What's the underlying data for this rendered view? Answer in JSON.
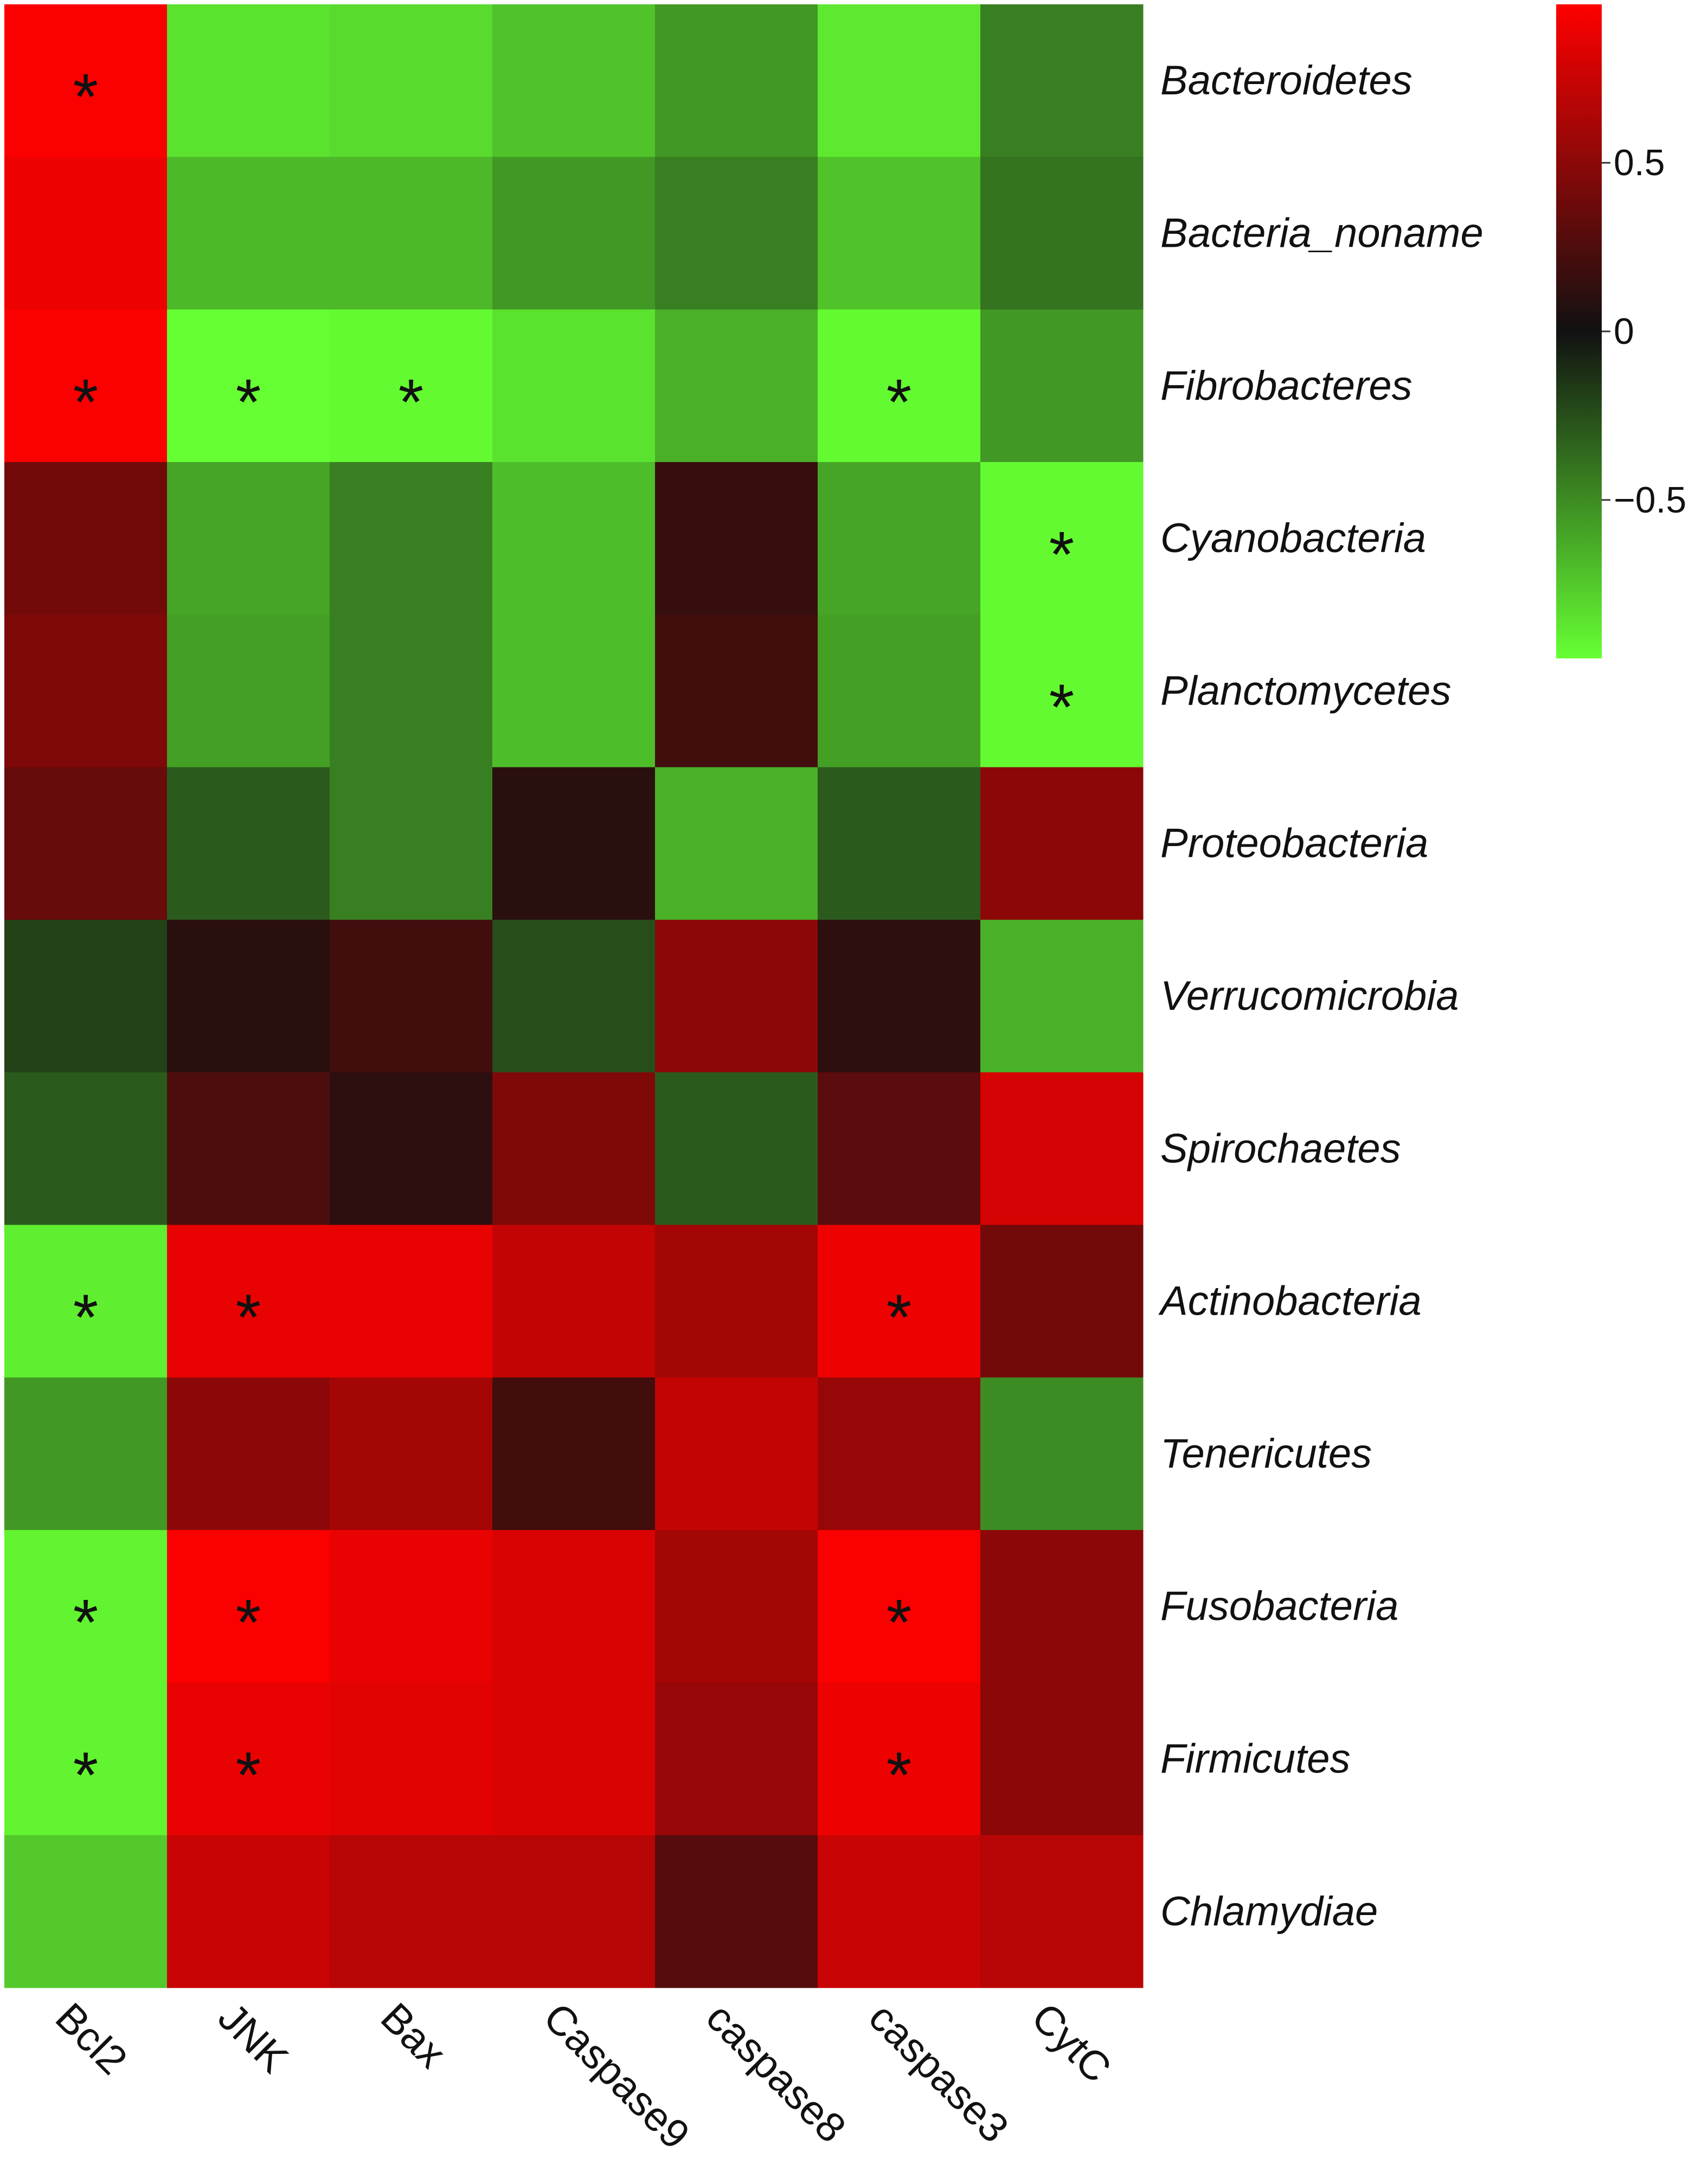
{
  "chart_data": {
    "type": "heatmap",
    "x": [
      "Bcl2",
      "JNK",
      "Bax",
      "Caspase9",
      "caspase8",
      "caspase3",
      "CytC"
    ],
    "y": [
      "Bacteroidetes",
      "Bacteria_noname",
      "Fibrobacteres",
      "Cyanobacteria",
      "Planctomycetes",
      "Proteobacteria",
      "Verrucomicrobia",
      "Spirochaetes",
      "Actinobacteria",
      "Tenericutes",
      "Fusobacteria",
      "Firmicutes",
      "Chlamydiae"
    ],
    "values": [
      [
        0.95,
        -0.85,
        -0.82,
        -0.72,
        -0.55,
        -0.88,
        -0.45
      ],
      [
        0.9,
        -0.68,
        -0.68,
        -0.55,
        -0.45,
        -0.72,
        -0.4
      ],
      [
        0.95,
        -0.97,
        -0.95,
        -0.85,
        -0.65,
        -0.95,
        -0.55
      ],
      [
        0.4,
        -0.6,
        -0.45,
        -0.7,
        0.15,
        -0.6,
        -0.95
      ],
      [
        0.45,
        -0.58,
        -0.45,
        -0.7,
        0.2,
        -0.58,
        -0.95
      ],
      [
        0.35,
        -0.3,
        -0.45,
        0.1,
        -0.65,
        -0.3,
        0.5
      ],
      [
        -0.2,
        0.1,
        0.2,
        -0.25,
        0.5,
        0.12,
        -0.65
      ],
      [
        -0.3,
        0.25,
        0.12,
        0.45,
        -0.3,
        0.3,
        0.8
      ],
      [
        -0.9,
        0.88,
        0.88,
        0.72,
        0.6,
        0.9,
        0.4
      ],
      [
        -0.55,
        0.5,
        0.6,
        0.2,
        0.72,
        0.55,
        -0.5
      ],
      [
        -0.92,
        0.95,
        0.88,
        0.82,
        0.6,
        0.95,
        0.5
      ],
      [
        -0.92,
        0.88,
        0.85,
        0.82,
        0.55,
        0.9,
        0.5
      ],
      [
        -0.75,
        0.75,
        0.68,
        0.68,
        0.28,
        0.75,
        0.68
      ]
    ],
    "annotations": [
      [
        "*",
        null,
        null,
        null,
        null,
        null,
        null
      ],
      [
        null,
        null,
        null,
        null,
        null,
        null,
        null
      ],
      [
        "*",
        "*",
        "*",
        null,
        null,
        "*",
        null
      ],
      [
        null,
        null,
        null,
        null,
        null,
        null,
        "*"
      ],
      [
        null,
        null,
        null,
        null,
        null,
        null,
        "*"
      ],
      [
        null,
        null,
        null,
        null,
        null,
        null,
        null
      ],
      [
        null,
        null,
        null,
        null,
        null,
        null,
        null
      ],
      [
        null,
        null,
        null,
        null,
        null,
        null,
        null
      ],
      [
        "*",
        "*",
        null,
        null,
        null,
        "*",
        null
      ],
      [
        null,
        null,
        null,
        null,
        null,
        null,
        null
      ],
      [
        "*",
        "*",
        null,
        null,
        null,
        "*",
        null
      ],
      [
        "*",
        "*",
        null,
        null,
        null,
        "*",
        null
      ],
      [
        null,
        null,
        null,
        null,
        null,
        null,
        null
      ]
    ],
    "colorscale": {
      "low": "#66ff33",
      "mid": "#111111",
      "high": "#ff0000"
    },
    "zlim": [
      -0.97,
      0.97
    ],
    "zticks": [
      0.5,
      0,
      {
        "value": -0.5,
        "label": "−0.5"
      }
    ]
  }
}
